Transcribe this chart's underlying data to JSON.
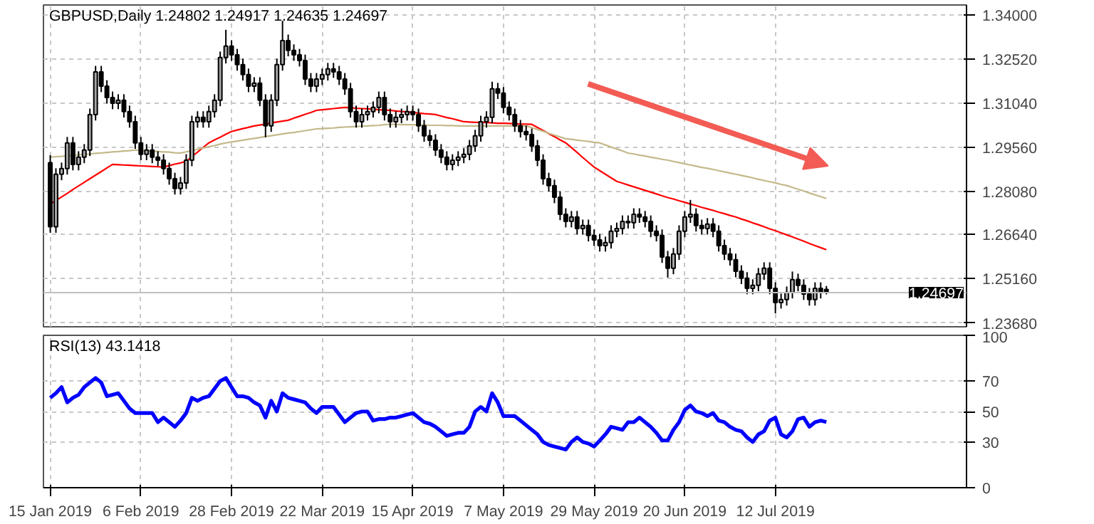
{
  "chart_data": [
    {
      "type": "candlestick",
      "title": "GBPUSD,Daily  1.24802 1.24917 1.24635 1.24697",
      "tick_labels": "y",
      "grid": true,
      "categories": [
        null,
        null,
        null,
        null,
        null,
        null,
        null,
        null,
        null,
        null,
        null,
        null,
        null,
        null,
        null,
        null,
        null,
        null,
        null,
        null,
        null,
        null,
        null,
        null,
        null,
        null,
        null,
        null,
        null,
        null,
        null,
        null,
        null,
        null,
        null,
        null,
        null,
        null,
        null,
        null,
        null,
        null,
        null,
        null,
        null,
        null,
        null,
        null,
        null,
        null,
        null,
        null,
        null,
        null,
        null,
        null,
        null,
        null,
        null,
        null,
        null,
        null,
        null,
        null,
        null,
        null,
        null,
        null,
        null,
        null,
        null,
        null,
        null,
        null,
        null,
        null,
        null,
        null,
        null,
        null,
        null,
        null,
        null,
        null,
        null,
        null,
        null,
        null,
        null,
        null,
        null,
        null,
        null,
        null,
        null,
        null,
        null,
        null,
        null,
        null,
        null,
        null,
        null,
        null,
        null,
        null,
        null,
        null,
        null,
        null,
        null,
        null,
        null,
        null,
        null,
        null,
        null,
        null,
        null,
        null,
        null,
        null,
        null,
        null,
        null,
        null,
        null,
        null,
        null,
        null,
        null,
        null,
        null,
        null,
        null,
        null,
        null,
        null
      ],
      "ylim": [
        1.2355,
        1.3433
      ],
      "yticks": [
        {
          "value": 1.2368,
          "label": "1.23680"
        },
        {
          "value": 1.2516,
          "label": "1.25160"
        },
        {
          "value": 1.2664,
          "label": "1.26640"
        },
        {
          "value": 1.2808,
          "label": "1.28080"
        },
        {
          "value": 1.2956,
          "label": "1.29560"
        },
        {
          "value": 1.3104,
          "label": "1.31040"
        },
        {
          "value": 1.3252,
          "label": "1.32520"
        },
        {
          "value": 1.34,
          "label": "1.34000"
        }
      ],
      "ref_lines": [
        {
          "axis": "y",
          "value": 1.24697,
          "label": "1.24697"
        }
      ],
      "ohlc": [
        [
          1.2905,
          1.293,
          1.267,
          1.269
        ],
        [
          1.269,
          1.2886,
          1.267,
          1.2866
        ],
        [
          1.2866,
          1.2905,
          1.2846,
          1.2885
        ],
        [
          1.2885,
          1.2991,
          1.2865,
          1.2971
        ],
        [
          1.2971,
          1.2991,
          1.2879,
          1.2899
        ],
        [
          1.2899,
          1.2943,
          1.2879,
          1.2923
        ],
        [
          1.2923,
          1.2967,
          1.2903,
          1.2947
        ],
        [
          1.2947,
          1.3086,
          1.2927,
          1.3066
        ],
        [
          1.3066,
          1.3229,
          1.3046,
          1.3209
        ],
        [
          1.3209,
          1.3229,
          1.3141,
          1.3161
        ],
        [
          1.3161,
          1.3181,
          1.3103,
          1.3123
        ],
        [
          1.3123,
          1.3143,
          1.3084,
          1.3104
        ],
        [
          1.3104,
          1.3134,
          1.3084,
          1.3114
        ],
        [
          1.3114,
          1.3134,
          1.3056,
          1.3076
        ],
        [
          1.3076,
          1.3096,
          1.3022,
          1.3042
        ],
        [
          1.3042,
          1.3062,
          1.2951,
          1.2971
        ],
        [
          1.2971,
          1.2991,
          1.2913,
          1.2933
        ],
        [
          1.2933,
          1.2967,
          1.2913,
          1.2947
        ],
        [
          1.2947,
          1.2967,
          1.2903,
          1.2923
        ],
        [
          1.2923,
          1.2943,
          1.2893,
          1.2913
        ],
        [
          1.2913,
          1.2933,
          1.2865,
          1.2885
        ],
        [
          1.2885,
          1.2905,
          1.2831,
          1.2851
        ],
        [
          1.2851,
          1.2871,
          1.2798,
          1.2818
        ],
        [
          1.2818,
          1.2857,
          1.2798,
          1.2837
        ],
        [
          1.2837,
          1.2933,
          1.2817,
          1.2913
        ],
        [
          1.2913,
          1.3062,
          1.2893,
          1.3042
        ],
        [
          1.3042,
          1.3077,
          1.3022,
          1.3057
        ],
        [
          1.3057,
          1.3077,
          1.3022,
          1.3042
        ],
        [
          1.3042,
          1.3096,
          1.3022,
          1.3076
        ],
        [
          1.3076,
          1.3134,
          1.3056,
          1.3114
        ],
        [
          1.3114,
          1.3277,
          1.3094,
          1.3257
        ],
        [
          1.3257,
          1.335,
          1.3237,
          1.3295
        ],
        [
          1.3295,
          1.3315,
          1.3246,
          1.3266
        ],
        [
          1.3266,
          1.3286,
          1.3213,
          1.3233
        ],
        [
          1.3233,
          1.3253,
          1.318,
          1.32
        ],
        [
          1.32,
          1.322,
          1.3141,
          1.3161
        ],
        [
          1.3161,
          1.3191,
          1.3141,
          1.3171
        ],
        [
          1.3171,
          1.3191,
          1.3094,
          1.3114
        ],
        [
          1.3114,
          1.3134,
          1.299,
          1.3028
        ],
        [
          1.3028,
          1.3134,
          1.3008,
          1.3114
        ],
        [
          1.3114,
          1.3253,
          1.3094,
          1.3233
        ],
        [
          1.3233,
          1.338,
          1.3213,
          1.3314
        ],
        [
          1.3314,
          1.3334,
          1.3261,
          1.3281
        ],
        [
          1.3281,
          1.3301,
          1.3246,
          1.3266
        ],
        [
          1.3266,
          1.3286,
          1.3227,
          1.3247
        ],
        [
          1.3247,
          1.3267,
          1.3165,
          1.3185
        ],
        [
          1.3185,
          1.3205,
          1.3141,
          1.3161
        ],
        [
          1.3161,
          1.3205,
          1.3141,
          1.3185
        ],
        [
          1.3185,
          1.322,
          1.3165,
          1.32
        ],
        [
          1.32,
          1.3239,
          1.318,
          1.3219
        ],
        [
          1.3219,
          1.3239,
          1.3189,
          1.3209
        ],
        [
          1.3209,
          1.3229,
          1.3165,
          1.3185
        ],
        [
          1.3185,
          1.3205,
          1.3132,
          1.3152
        ],
        [
          1.3152,
          1.3172,
          1.3056,
          1.3076
        ],
        [
          1.3076,
          1.3096,
          1.3022,
          1.3042
        ],
        [
          1.3042,
          1.3086,
          1.3022,
          1.3066
        ],
        [
          1.3066,
          1.3096,
          1.3046,
          1.3076
        ],
        [
          1.3076,
          1.311,
          1.3056,
          1.309
        ],
        [
          1.309,
          1.3143,
          1.307,
          1.3123
        ],
        [
          1.3123,
          1.3143,
          1.3046,
          1.3066
        ],
        [
          1.3066,
          1.3086,
          1.3022,
          1.3042
        ],
        [
          1.3042,
          1.3077,
          1.3022,
          1.3057
        ],
        [
          1.3057,
          1.3086,
          1.3037,
          1.3066
        ],
        [
          1.3066,
          1.3096,
          1.3046,
          1.3076
        ],
        [
          1.3076,
          1.3096,
          1.3046,
          1.3066
        ],
        [
          1.3066,
          1.3086,
          1.3008,
          1.3028
        ],
        [
          1.3028,
          1.3048,
          1.2975,
          1.2995
        ],
        [
          1.2995,
          1.3015,
          1.296,
          1.298
        ],
        [
          1.298,
          1.3,
          1.2927,
          1.2947
        ],
        [
          1.2947,
          1.2967,
          1.2903,
          1.2923
        ],
        [
          1.2923,
          1.2943,
          1.2879,
          1.2899
        ],
        [
          1.2899,
          1.2933,
          1.2879,
          1.2913
        ],
        [
          1.2913,
          1.2943,
          1.2893,
          1.2923
        ],
        [
          1.2923,
          1.2953,
          1.2903,
          1.2933
        ],
        [
          1.2933,
          1.2981,
          1.2913,
          1.2961
        ],
        [
          1.2961,
          1.3015,
          1.2941,
          1.2995
        ],
        [
          1.2995,
          1.3062,
          1.2975,
          1.3042
        ],
        [
          1.3042,
          1.3077,
          1.3022,
          1.3057
        ],
        [
          1.3057,
          1.3176,
          1.3037,
          1.3152
        ],
        [
          1.3152,
          1.3172,
          1.3118,
          1.3138
        ],
        [
          1.3138,
          1.3158,
          1.307,
          1.309
        ],
        [
          1.309,
          1.311,
          1.3046,
          1.3066
        ],
        [
          1.3066,
          1.3086,
          1.3008,
          1.3028
        ],
        [
          1.3028,
          1.3048,
          1.2989,
          1.3009
        ],
        [
          1.3009,
          1.3029,
          1.2979,
          1.2999
        ],
        [
          1.2999,
          1.3019,
          1.2941,
          1.2961
        ],
        [
          1.2961,
          1.2981,
          1.2893,
          1.2913
        ],
        [
          1.2913,
          1.2933,
          1.2831,
          1.2851
        ],
        [
          1.2851,
          1.2871,
          1.2808,
          1.2828
        ],
        [
          1.2828,
          1.2848,
          1.2769,
          1.2789
        ],
        [
          1.2789,
          1.2809,
          1.2712,
          1.2732
        ],
        [
          1.2732,
          1.2752,
          1.2688,
          1.2708
        ],
        [
          1.2708,
          1.2743,
          1.2688,
          1.2723
        ],
        [
          1.2723,
          1.2743,
          1.2664,
          1.2684
        ],
        [
          1.2684,
          1.2714,
          1.2664,
          1.2694
        ],
        [
          1.2694,
          1.2714,
          1.2641,
          1.2661
        ],
        [
          1.2661,
          1.2681,
          1.2626,
          1.2646
        ],
        [
          1.2646,
          1.2666,
          1.2607,
          1.2627
        ],
        [
          1.2627,
          1.2657,
          1.2607,
          1.2637
        ],
        [
          1.2637,
          1.2695,
          1.2617,
          1.2675
        ],
        [
          1.2675,
          1.2704,
          1.2655,
          1.2684
        ],
        [
          1.2684,
          1.2728,
          1.2664,
          1.2708
        ],
        [
          1.2708,
          1.2728,
          1.2684,
          1.2704
        ],
        [
          1.2704,
          1.2752,
          1.2684,
          1.2732
        ],
        [
          1.2732,
          1.2752,
          1.2703,
          1.2723
        ],
        [
          1.2723,
          1.2743,
          1.2688,
          1.2708
        ],
        [
          1.2708,
          1.2728,
          1.2655,
          1.2675
        ],
        [
          1.2675,
          1.2695,
          1.2641,
          1.2661
        ],
        [
          1.2661,
          1.2681,
          1.2569,
          1.2589
        ],
        [
          1.2589,
          1.2609,
          1.252,
          1.2551
        ],
        [
          1.2551,
          1.2619,
          1.2531,
          1.2599
        ],
        [
          1.2599,
          1.2695,
          1.2579,
          1.2675
        ],
        [
          1.2675,
          1.2743,
          1.2655,
          1.2723
        ],
        [
          1.2723,
          1.278,
          1.2703,
          1.2732
        ],
        [
          1.2732,
          1.2752,
          1.2674,
          1.2694
        ],
        [
          1.2694,
          1.2714,
          1.2664,
          1.2684
        ],
        [
          1.2684,
          1.2719,
          1.2664,
          1.2699
        ],
        [
          1.2699,
          1.2719,
          1.2655,
          1.2675
        ],
        [
          1.2675,
          1.2695,
          1.2607,
          1.2627
        ],
        [
          1.2627,
          1.2647,
          1.2579,
          1.2599
        ],
        [
          1.2599,
          1.2619,
          1.256,
          1.258
        ],
        [
          1.258,
          1.26,
          1.2521,
          1.2541
        ],
        [
          1.2541,
          1.2561,
          1.2498,
          1.2518
        ],
        [
          1.2518,
          1.2538,
          1.2464,
          1.2484
        ],
        [
          1.2484,
          1.2514,
          1.2464,
          1.2494
        ],
        [
          1.2494,
          1.2552,
          1.2474,
          1.2532
        ],
        [
          1.2532,
          1.2571,
          1.2512,
          1.2551
        ],
        [
          1.2551,
          1.2571,
          1.2464,
          1.2484
        ],
        [
          1.2484,
          1.2504,
          1.24,
          1.2436
        ],
        [
          1.2436,
          1.2466,
          1.2416,
          1.2446
        ],
        [
          1.2446,
          1.249,
          1.2426,
          1.247
        ],
        [
          1.247,
          1.254,
          1.245,
          1.2513
        ],
        [
          1.2513,
          1.2533,
          1.2474,
          1.2494
        ],
        [
          1.2494,
          1.2514,
          1.2445,
          1.2465
        ],
        [
          1.2465,
          1.2485,
          1.2426,
          1.2446
        ],
        [
          1.2446,
          1.2504,
          1.2426,
          1.2484
        ],
        [
          1.2484,
          1.2504,
          1.245,
          1.247
        ],
        [
          1.24802,
          1.24917,
          1.24635,
          1.24697
        ]
      ],
      "series": [
        {
          "type": "line",
          "color": "#ff0000",
          "values": [
            1.2766,
            1.2778,
            1.279,
            1.2802,
            1.2815,
            1.2827,
            1.2839,
            1.2851,
            1.2863,
            1.2875,
            1.2887,
            1.2899,
            1.2898,
            1.2897,
            1.2896,
            1.2895,
            1.2894,
            1.2893,
            1.2892,
            1.2891,
            1.289,
            1.2895,
            1.29,
            1.2904,
            1.2909,
            1.2925,
            1.294,
            1.2956,
            1.2971,
            1.2981,
            1.299,
            1.3,
            1.3009,
            1.3014,
            1.3019,
            1.3023,
            1.3028,
            1.3031,
            1.3034,
            1.3038,
            1.3041,
            1.3044,
            1.3047,
            1.3054,
            1.306,
            1.3067,
            1.3073,
            1.308,
            1.3082,
            1.3084,
            1.3086,
            1.3088,
            1.309,
            1.3089,
            1.3087,
            1.3086,
            1.3085,
            1.3084,
            1.3082,
            1.3081,
            1.308,
            1.3078,
            1.3076,
            1.3075,
            1.3073,
            1.3071,
            1.3069,
            1.3068,
            1.3066,
            1.3061,
            1.3056,
            1.3052,
            1.3047,
            1.3042,
            1.3041,
            1.304,
            1.304,
            1.3039,
            1.3038,
            1.3037,
            1.3037,
            1.3036,
            1.3035,
            1.3034,
            1.3034,
            1.3033,
            1.3023,
            1.3013,
            1.3002,
            1.2992,
            1.2981,
            1.2971,
            1.2955,
            1.2939,
            1.2922,
            1.2906,
            1.289,
            1.2878,
            1.2866,
            1.2854,
            1.2842,
            1.2836,
            1.283,
            1.2824,
            1.2818,
            1.2812,
            1.2806,
            1.28,
            1.2794,
            1.2788,
            1.2783,
            1.2777,
            1.2772,
            1.2766,
            1.2761,
            1.2755,
            1.275,
            1.2745,
            1.2739,
            1.2734,
            1.2728,
            1.2723,
            1.2716,
            1.271,
            1.2703,
            1.2697,
            1.269,
            1.2683,
            1.2677,
            1.267,
            1.2663,
            1.2656,
            1.2649,
            1.2642,
            1.2634,
            1.2627,
            1.262,
            1.2613
          ]
        },
        {
          "type": "line",
          "color": "#c3b98a",
          "values": [
            1.2923,
            1.2925,
            1.2926,
            1.2928,
            1.2929,
            1.2931,
            1.2933,
            1.2934,
            1.2936,
            1.2937,
            1.2939,
            1.2941,
            1.2942,
            1.2944,
            1.2945,
            1.2947,
            1.2946,
            1.2944,
            1.2943,
            1.2942,
            1.2941,
            1.294,
            1.2938,
            1.2937,
            1.2941,
            1.2945,
            1.295,
            1.2954,
            1.2958,
            1.2962,
            1.2967,
            1.2971,
            1.2974,
            1.2977,
            1.298,
            1.2983,
            1.2986,
            1.2989,
            1.2992,
            1.2995,
            1.2998,
            1.3001,
            1.3004,
            1.3006,
            1.3009,
            1.3012,
            1.3015,
            1.3018,
            1.3019,
            1.302,
            1.3021,
            1.3023,
            1.3024,
            1.3025,
            1.3026,
            1.3027,
            1.3028,
            1.3029,
            1.303,
            1.3032,
            1.3033,
            1.3033,
            1.3032,
            1.3032,
            1.3032,
            1.3031,
            1.3031,
            1.303,
            1.303,
            1.303,
            1.3029,
            1.3029,
            1.3028,
            1.3028,
            1.3028,
            1.3028,
            1.3028,
            1.3028,
            1.3028,
            1.3028,
            1.3028,
            1.3028,
            1.3028,
            1.3028,
            1.3028,
            1.3022,
            1.3016,
            1.301,
            1.3003,
            1.2997,
            1.2991,
            1.2985,
            1.2983,
            1.298,
            1.2978,
            1.2976,
            1.2973,
            1.2971,
            1.2964,
            1.2957,
            1.2951,
            1.2944,
            1.2937,
            1.2934,
            1.293,
            1.2927,
            1.2923,
            1.292,
            1.2916,
            1.2913,
            1.2909,
            1.2905,
            1.2901,
            1.2897,
            1.2893,
            1.2889,
            1.2886,
            1.2882,
            1.2878,
            1.2874,
            1.287,
            1.2866,
            1.2862,
            1.2858,
            1.2854,
            1.2849,
            1.2845,
            1.2841,
            1.2837,
            1.2832,
            1.2828,
            1.2822,
            1.2816,
            1.281,
            1.2803,
            1.2797,
            1.2791,
            1.2785
          ]
        }
      ]
    },
    {
      "type": "line",
      "title": "RSI(13) 43.1418",
      "grid": true,
      "categories": [
        "15 Jan 2019",
        null,
        null,
        null,
        null,
        null,
        null,
        null,
        null,
        null,
        null,
        null,
        null,
        null,
        null,
        null,
        "6 Feb 2019",
        null,
        null,
        null,
        null,
        null,
        null,
        null,
        null,
        null,
        null,
        null,
        null,
        null,
        null,
        null,
        "28 Feb 2019",
        null,
        null,
        null,
        null,
        null,
        null,
        null,
        null,
        null,
        null,
        null,
        null,
        null,
        null,
        null,
        "22 Mar 2019",
        null,
        null,
        null,
        null,
        null,
        null,
        null,
        null,
        null,
        null,
        null,
        null,
        null,
        null,
        null,
        "15 Apr 2019",
        null,
        null,
        null,
        null,
        null,
        null,
        null,
        null,
        null,
        null,
        null,
        null,
        null,
        null,
        null,
        "7 May 2019",
        null,
        null,
        null,
        null,
        null,
        null,
        null,
        null,
        null,
        null,
        null,
        null,
        null,
        null,
        null,
        "29 May 2019",
        null,
        null,
        null,
        null,
        null,
        null,
        null,
        null,
        null,
        null,
        null,
        null,
        null,
        null,
        null,
        "20 Jun 2019",
        null,
        null,
        null,
        null,
        null,
        null,
        null,
        null,
        null,
        null,
        null,
        null,
        null,
        null,
        null,
        "12 Jul 2019",
        null,
        null,
        null,
        null,
        null,
        null,
        null,
        null,
        null
      ],
      "ylim": [
        0,
        100
      ],
      "yticks": [
        0,
        30,
        50,
        70,
        100
      ],
      "series": [
        {
          "color": "#0000ff",
          "values": [
            59,
            62,
            66,
            56,
            59,
            61,
            66,
            69,
            72,
            69,
            60,
            61,
            62,
            57,
            52,
            49,
            49,
            49,
            49,
            43,
            46,
            43,
            40,
            44,
            49,
            59,
            57,
            59,
            60,
            65,
            70,
            72,
            66,
            60,
            60,
            59,
            56,
            54,
            46,
            57,
            50,
            62,
            59,
            58,
            57,
            56,
            52,
            49,
            53,
            53,
            53,
            48,
            43,
            46,
            49,
            50,
            50,
            44,
            45,
            45,
            46,
            46,
            47,
            48,
            49,
            46,
            43,
            42,
            40,
            37,
            34,
            35,
            36,
            36,
            40,
            50,
            53,
            50,
            62,
            56,
            47,
            47,
            47,
            44,
            41,
            38,
            35,
            30,
            28,
            27,
            26,
            25,
            30,
            33,
            30,
            29,
            27,
            31,
            35,
            40,
            39,
            38,
            43,
            43,
            46,
            43,
            40,
            36,
            31,
            31,
            38,
            43,
            51,
            54,
            50,
            49,
            47,
            49,
            44,
            43,
            40,
            38,
            37,
            33,
            30,
            35,
            37,
            44,
            46,
            35,
            33,
            37,
            45,
            46,
            40,
            43,
            44,
            43.1418
          ]
        }
      ]
    }
  ]
}
